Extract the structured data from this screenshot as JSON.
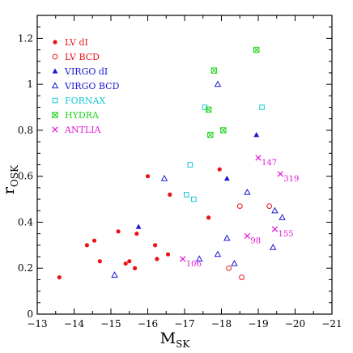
{
  "chart_data": {
    "type": "scatter",
    "xlabel": "M",
    "xlabel_sub": "SK",
    "ylabel": "r",
    "ylabel_sub": "OSK",
    "xlim": [
      -13,
      -21
    ],
    "ylim": [
      0,
      1.3
    ],
    "x_ticks": [
      -13,
      -14,
      -15,
      -16,
      -17,
      -18,
      -19,
      -20,
      -21
    ],
    "x_tick_labels": [
      "−13",
      "−14",
      "−15",
      "−16",
      "−17",
      "−18",
      "−19",
      "−20",
      "−21"
    ],
    "y_ticks": [
      0,
      0.2,
      0.4,
      0.6,
      0.8,
      1,
      1.2
    ],
    "y_tick_labels": [
      "0",
      "0.2",
      "0.4",
      "0.6",
      "0.8",
      "1",
      "1.2"
    ],
    "grid": false,
    "legend_position": "top-left",
    "series": [
      {
        "name": "LV dI",
        "marker": "filled-circle",
        "color": "#e8131b",
        "points": [
          {
            "x": -13.6,
            "y": 0.16
          },
          {
            "x": -14.35,
            "y": 0.3
          },
          {
            "x": -14.55,
            "y": 0.32
          },
          {
            "x": -14.7,
            "y": 0.23
          },
          {
            "x": -15.2,
            "y": 0.36
          },
          {
            "x": -15.4,
            "y": 0.22
          },
          {
            "x": -15.5,
            "y": 0.23
          },
          {
            "x": -15.65,
            "y": 0.2
          },
          {
            "x": -15.7,
            "y": 0.35
          },
          {
            "x": -16.0,
            "y": 0.6
          },
          {
            "x": -16.2,
            "y": 0.3
          },
          {
            "x": -16.25,
            "y": 0.24
          },
          {
            "x": -16.55,
            "y": 0.26
          },
          {
            "x": -16.6,
            "y": 0.52
          },
          {
            "x": -17.65,
            "y": 0.42
          },
          {
            "x": -17.95,
            "y": 0.63
          }
        ]
      },
      {
        "name": "LV BCD",
        "marker": "open-circle",
        "color": "#e8131b",
        "points": [
          {
            "x": -18.2,
            "y": 0.2
          },
          {
            "x": -18.5,
            "y": 0.47
          },
          {
            "x": -18.55,
            "y": 0.16
          },
          {
            "x": -19.3,
            "y": 0.47
          }
        ]
      },
      {
        "name": "VIRGO dI",
        "marker": "filled-triangle",
        "color": "#1a1ad6",
        "points": [
          {
            "x": -15.75,
            "y": 0.38
          },
          {
            "x": -18.15,
            "y": 0.59
          },
          {
            "x": -18.95,
            "y": 0.78
          }
        ]
      },
      {
        "name": "VIRGO BCD",
        "marker": "open-triangle",
        "color": "#1a1ad6",
        "points": [
          {
            "x": -15.1,
            "y": 0.17
          },
          {
            "x": -16.45,
            "y": 0.59
          },
          {
            "x": -17.4,
            "y": 0.24
          },
          {
            "x": -17.9,
            "y": 0.26
          },
          {
            "x": -17.9,
            "y": 1.0
          },
          {
            "x": -18.15,
            "y": 0.33
          },
          {
            "x": -18.35,
            "y": 0.22
          },
          {
            "x": -18.7,
            "y": 0.53
          },
          {
            "x": -19.4,
            "y": 0.29
          },
          {
            "x": -19.45,
            "y": 0.45
          },
          {
            "x": -19.65,
            "y": 0.42
          }
        ]
      },
      {
        "name": "FORNAX",
        "marker": "open-square",
        "color": "#17c8d6",
        "points": [
          {
            "x": -17.05,
            "y": 0.52
          },
          {
            "x": -17.15,
            "y": 0.65
          },
          {
            "x": -17.25,
            "y": 0.5
          },
          {
            "x": -17.55,
            "y": 0.9
          },
          {
            "x": -19.1,
            "y": 0.9
          }
        ]
      },
      {
        "name": "HYDRA",
        "marker": "square-x",
        "color": "#22d41c",
        "points": [
          {
            "x": -17.65,
            "y": 0.89
          },
          {
            "x": -17.7,
            "y": 0.78
          },
          {
            "x": -17.8,
            "y": 1.06
          },
          {
            "x": -18.05,
            "y": 0.8
          },
          {
            "x": -18.95,
            "y": 1.15
          }
        ]
      },
      {
        "name": "ANTLIA",
        "marker": "cross",
        "color": "#e31bd6",
        "points": [
          {
            "x": -16.95,
            "y": 0.24,
            "label": "106"
          },
          {
            "x": -18.7,
            "y": 0.34,
            "label": "98"
          },
          {
            "x": -19.0,
            "y": 0.68,
            "label": "147"
          },
          {
            "x": -19.45,
            "y": 0.37,
            "label": "155"
          },
          {
            "x": -19.6,
            "y": 0.61,
            "label": "319"
          }
        ]
      }
    ]
  }
}
